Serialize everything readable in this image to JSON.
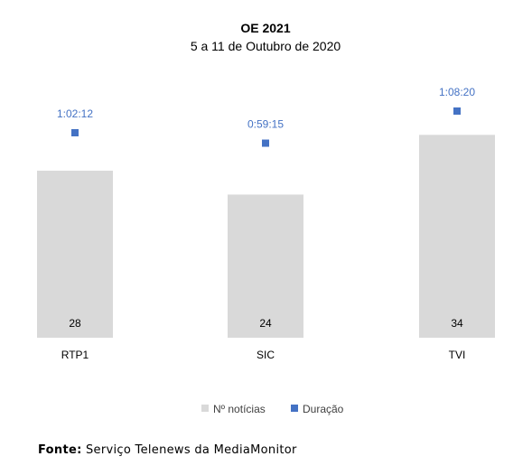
{
  "chart_data": {
    "type": "bar",
    "title": "OE 2021",
    "subtitle": "5 a 11 de Outubro de 2020",
    "categories": [
      "RTP1",
      "SIC",
      "TVI"
    ],
    "series": [
      {
        "name": "Nº notícias",
        "values": [
          28,
          24,
          34
        ],
        "color": "#d9d9d9"
      },
      {
        "name": "Duração",
        "values": [
          "1:02:12",
          "0:59:15",
          "1:08:20"
        ],
        "seconds": [
          3732,
          3555,
          4100
        ],
        "color": "#4472c4"
      }
    ],
    "legend_position": "bottom",
    "grid": false
  },
  "source": {
    "label": "Fonte:",
    "text": " Serviço Telenews da MediaMonitor"
  }
}
